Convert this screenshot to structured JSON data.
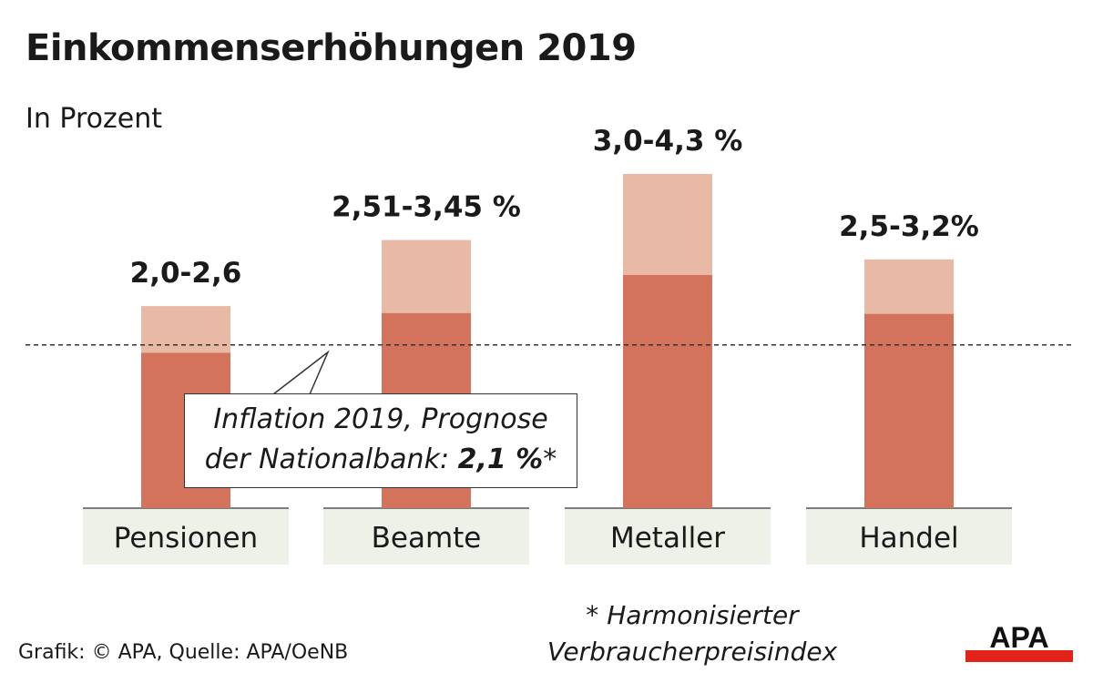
{
  "chart_data": {
    "type": "bar",
    "title": "Einkommenserhöhungen 2019",
    "subtitle": "In Prozent",
    "categories": [
      "Pensionen",
      "Beamte",
      "Metaller",
      "Handel"
    ],
    "series": [
      {
        "name": "",
        "values": [
          2.0,
          2.51,
          3.0,
          2.5
        ]
      },
      {
        "name": "",
        "values": [
          2.6,
          3.45,
          4.3,
          3.2
        ]
      }
    ],
    "value_labels": [
      "2,0-2,6",
      "2,51-3,45 %",
      "3,0-4,3 %",
      "2,5-3,2%"
    ],
    "reference_line": {
      "value": 2.1
    },
    "ylim": [
      0,
      4.3
    ],
    "grid": false,
    "colors": {
      "lower": "#d4735b",
      "upper": "#e8b9a5",
      "label_bg": "#eef1e8"
    }
  },
  "callout": {
    "line1": "Inflation 2019, Prognose",
    "line2_prefix": "der Nationalbank: ",
    "line2_value": "2,1 %",
    "line2_suffix": "*"
  },
  "footnote": {
    "line1": "* Harmonisierter",
    "line2": "Verbraucherpreisindex"
  },
  "source": "Grafik: © APA, Quelle: APA/OeNB",
  "logo": {
    "text": "APA"
  }
}
